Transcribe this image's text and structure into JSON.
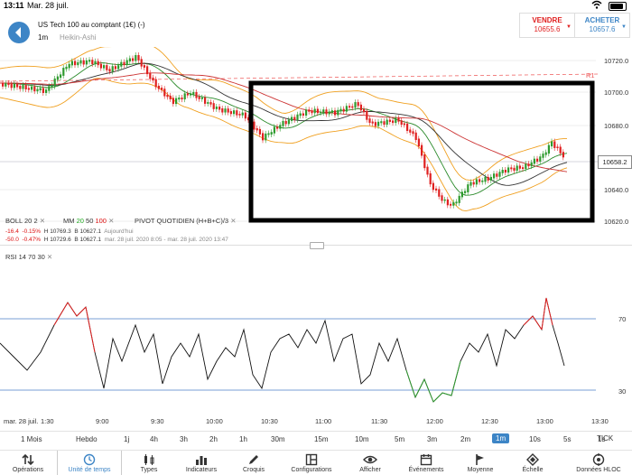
{
  "status_bar": {
    "time": "13:11",
    "date": "Mar. 28 juil.",
    "wifi_icon": "wifi-icon",
    "battery_icon": "battery-icon"
  },
  "header": {
    "instrument": "US Tech 100 au comptant (1€) (-)",
    "timeframe": "1m",
    "chart_type": "Heikin-Ashi",
    "sell": {
      "label": "VENDRE",
      "price": "10655.6"
    },
    "buy": {
      "label": "ACHETER",
      "price": "10657.6"
    }
  },
  "price_axis": {
    "ticks": [
      "10720.0",
      "10700.0",
      "10680.0",
      "10640.0",
      "10620.0"
    ],
    "current_price": "10658.2",
    "marker_label": "R1"
  },
  "indicators_legend": {
    "boll": {
      "name": "BOLL",
      "p1": "20",
      "p2": "2"
    },
    "mm": {
      "name": "MM",
      "p1": "20",
      "p2": "50",
      "p3": "100"
    },
    "pivot": {
      "name": "PIVOT",
      "text": "QUOTIDIEN",
      "formula": "(H+B+C)/3"
    },
    "row1": {
      "change": "-16.4",
      "change_pct": "-0.15%",
      "high": "H 10769.3",
      "low": "B 10627.1",
      "period": "Aujourd'hui"
    },
    "row2": {
      "change": "-50.0",
      "change_pct": "-0.47%",
      "high": "H 10729.6",
      "low": "B 10627.1",
      "range": "mar. 28 juil. 2020 8:05 - mar. 28 juil. 2020 13:47"
    }
  },
  "rsi": {
    "name": "RSI",
    "p1": "14",
    "p2": "70",
    "p3": "30",
    "upper": "70",
    "lower": "30"
  },
  "time_axis": {
    "date": "mar. 28 juil.",
    "labels": [
      "1:30",
      "9:00",
      "9:30",
      "10:00",
      "10:30",
      "11:00",
      "11:30",
      "12:00",
      "12:30",
      "13:00",
      "13:30"
    ]
  },
  "timeframes": {
    "items": [
      "1 Mois",
      "Hebdo",
      "1j",
      "4h",
      "3h",
      "2h",
      "1h",
      "30m",
      "15m",
      "10m",
      "5m",
      "3m",
      "2m",
      "1m",
      "10s",
      "5s",
      "1s",
      "TICK"
    ],
    "active": "1m"
  },
  "toolbar": {
    "items": [
      {
        "label": "Opérations",
        "icon": "arrows-updown-icon"
      },
      {
        "label": "Unité de temps",
        "icon": "clock-icon"
      },
      {
        "label": "Types",
        "icon": "candles-icon"
      },
      {
        "label": "Indicateurs",
        "icon": "bars-chart-icon"
      },
      {
        "label": "Croquis",
        "icon": "pencil-icon"
      },
      {
        "label": "Configurations",
        "icon": "layout-icon"
      },
      {
        "label": "Afficher",
        "icon": "eye-icon"
      },
      {
        "label": "Événements",
        "icon": "calendar-icon"
      },
      {
        "label": "Moyenne",
        "icon": "flag-icon"
      },
      {
        "label": "Échelle",
        "icon": "diamond-icon"
      },
      {
        "label": "Données HLOC",
        "icon": "target-icon"
      }
    ],
    "active_index": 1,
    "accent": "#3d85c6"
  },
  "colors": {
    "up": "#2e9b2e",
    "down": "#e02020",
    "boll": "#f0a020",
    "rsi_line": "#111111",
    "rsi_band": "#7a9fd4"
  }
}
